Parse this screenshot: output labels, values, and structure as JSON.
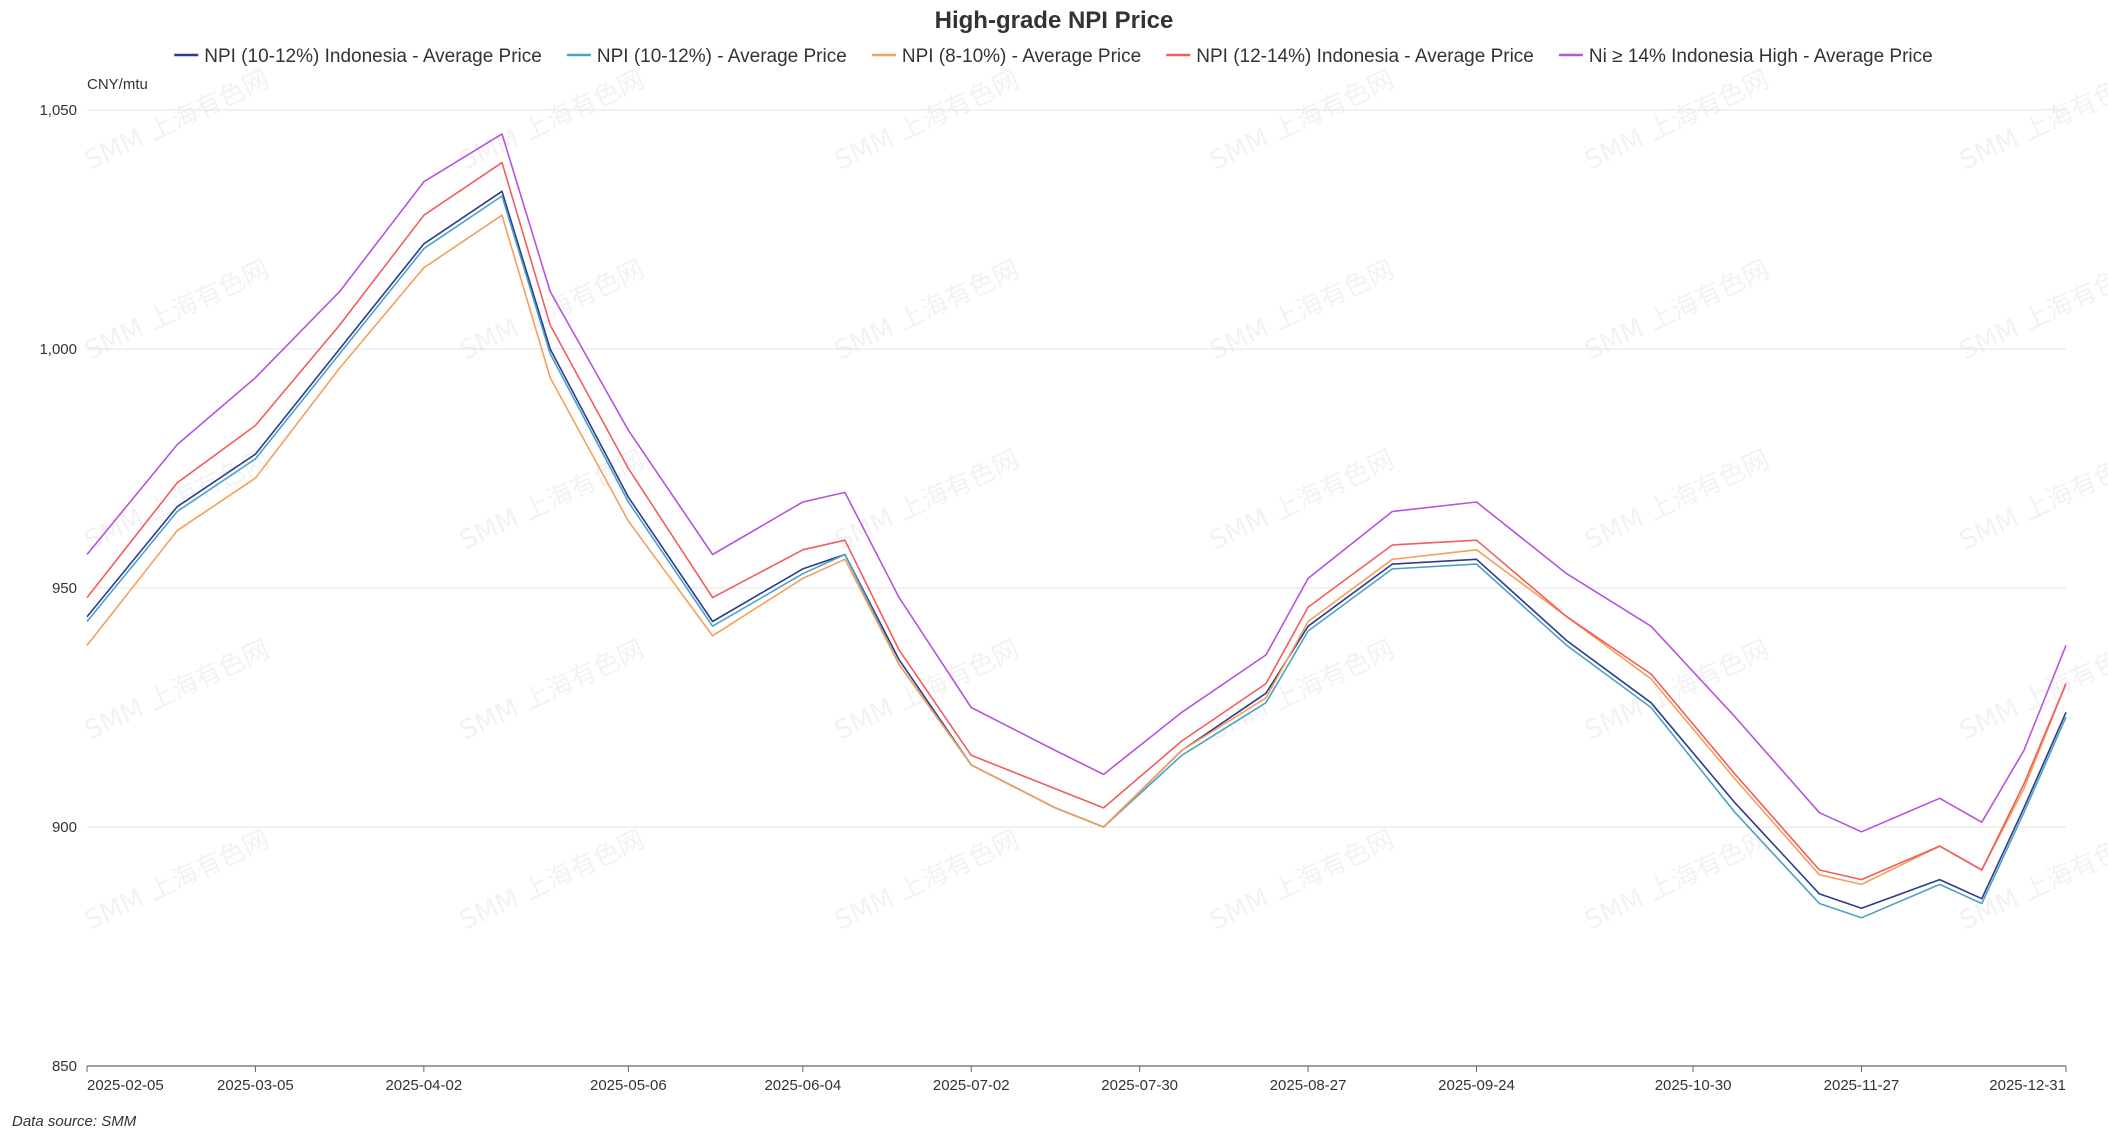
{
  "chart_data": {
    "type": "line",
    "title": "High-grade NPI Price",
    "unit_label": "CNY/mtu",
    "source": "Data source:  SMM",
    "watermark": "SMM 上海有色网",
    "ylim": [
      850,
      1050
    ],
    "yticks": [
      "850",
      "900",
      "950",
      "1,000",
      "1,050"
    ],
    "ytick_values": [
      850,
      900,
      950,
      1000,
      1050
    ],
    "x_first": "2025-02-05",
    "x_last": "2025-12-31",
    "xtick_labels": [
      "2025-02-05",
      "2025-03-05",
      "2025-04-02",
      "2025-05-06",
      "2025-06-04",
      "2025-07-02",
      "2025-07-30",
      "2025-08-27",
      "2025-09-24",
      "2025-10-30",
      "2025-11-27",
      "2025-12-31"
    ],
    "grid": true,
    "legend": "top-center",
    "series": [
      {
        "name": "NPI (10-12%) Indonesia - Average Price",
        "color": "#2f3a8f",
        "points": [
          [
            "2025-02-05",
            944
          ],
          [
            "2025-02-20",
            967
          ],
          [
            "2025-03-05",
            978
          ],
          [
            "2025-03-19",
            1000
          ],
          [
            "2025-04-02",
            1022
          ],
          [
            "2025-04-15",
            1033
          ],
          [
            "2025-04-23",
            1000
          ],
          [
            "2025-05-06",
            969
          ],
          [
            "2025-05-20",
            943
          ],
          [
            "2025-06-04",
            954
          ],
          [
            "2025-06-11",
            957
          ],
          [
            "2025-06-20",
            935
          ],
          [
            "2025-07-02",
            913
          ],
          [
            "2025-07-16",
            904
          ],
          [
            "2025-07-24",
            900
          ],
          [
            "2025-08-06",
            916
          ],
          [
            "2025-08-20",
            928
          ],
          [
            "2025-08-27",
            942
          ],
          [
            "2025-09-10",
            955
          ],
          [
            "2025-09-24",
            956
          ],
          [
            "2025-10-09",
            939
          ],
          [
            "2025-10-23",
            926
          ],
          [
            "2025-11-06",
            905
          ],
          [
            "2025-11-20",
            886
          ],
          [
            "2025-11-27",
            883
          ],
          [
            "2025-12-10",
            889
          ],
          [
            "2025-12-17",
            885
          ],
          [
            "2025-12-24",
            904
          ],
          [
            "2025-12-31",
            924
          ]
        ]
      },
      {
        "name": "NPI (10-12%) - Average Price",
        "color": "#4ba3c3",
        "points": [
          [
            "2025-02-05",
            943
          ],
          [
            "2025-02-20",
            966
          ],
          [
            "2025-03-05",
            977
          ],
          [
            "2025-03-19",
            999
          ],
          [
            "2025-04-02",
            1021
          ],
          [
            "2025-04-15",
            1032
          ],
          [
            "2025-04-23",
            999
          ],
          [
            "2025-05-06",
            968
          ],
          [
            "2025-05-20",
            942
          ],
          [
            "2025-06-04",
            953
          ],
          [
            "2025-06-11",
            957
          ],
          [
            "2025-06-20",
            934
          ],
          [
            "2025-07-02",
            913
          ],
          [
            "2025-07-16",
            904
          ],
          [
            "2025-07-24",
            900
          ],
          [
            "2025-08-06",
            915
          ],
          [
            "2025-08-20",
            926
          ],
          [
            "2025-08-27",
            941
          ],
          [
            "2025-09-10",
            954
          ],
          [
            "2025-09-24",
            955
          ],
          [
            "2025-10-09",
            938
          ],
          [
            "2025-10-23",
            925
          ],
          [
            "2025-11-06",
            903
          ],
          [
            "2025-11-20",
            884
          ],
          [
            "2025-11-27",
            881
          ],
          [
            "2025-12-10",
            888
          ],
          [
            "2025-12-17",
            884
          ],
          [
            "2025-12-24",
            903
          ],
          [
            "2025-12-31",
            923
          ]
        ]
      },
      {
        "name": "NPI (8-10%) - Average Price",
        "color": "#f5a05a",
        "points": [
          [
            "2025-02-05",
            938
          ],
          [
            "2025-02-20",
            962
          ],
          [
            "2025-03-05",
            973
          ],
          [
            "2025-03-19",
            996
          ],
          [
            "2025-04-02",
            1017
          ],
          [
            "2025-04-15",
            1028
          ],
          [
            "2025-04-23",
            994
          ],
          [
            "2025-05-06",
            964
          ],
          [
            "2025-05-20",
            940
          ],
          [
            "2025-06-04",
            952
          ],
          [
            "2025-06-11",
            956
          ],
          [
            "2025-06-20",
            934
          ],
          [
            "2025-07-02",
            913
          ],
          [
            "2025-07-16",
            904
          ],
          [
            "2025-07-24",
            900
          ],
          [
            "2025-08-06",
            916
          ],
          [
            "2025-08-20",
            927
          ],
          [
            "2025-08-27",
            943
          ],
          [
            "2025-09-10",
            956
          ],
          [
            "2025-09-24",
            958
          ],
          [
            "2025-10-09",
            944
          ],
          [
            "2025-10-23",
            931
          ],
          [
            "2025-11-06",
            910
          ],
          [
            "2025-11-20",
            890
          ],
          [
            "2025-11-27",
            888
          ],
          [
            "2025-12-10",
            896
          ],
          [
            "2025-12-17",
            891
          ],
          [
            "2025-12-24",
            908
          ],
          [
            "2025-12-31",
            930
          ]
        ]
      },
      {
        "name": "NPI (12-14%) Indonesia - Average Price",
        "color": "#f25d5d",
        "points": [
          [
            "2025-02-05",
            948
          ],
          [
            "2025-02-20",
            972
          ],
          [
            "2025-03-05",
            984
          ],
          [
            "2025-03-19",
            1005
          ],
          [
            "2025-04-02",
            1028
          ],
          [
            "2025-04-15",
            1039
          ],
          [
            "2025-04-23",
            1005
          ],
          [
            "2025-05-06",
            975
          ],
          [
            "2025-05-20",
            948
          ],
          [
            "2025-06-04",
            958
          ],
          [
            "2025-06-11",
            960
          ],
          [
            "2025-06-20",
            937
          ],
          [
            "2025-07-02",
            915
          ],
          [
            "2025-07-16",
            908
          ],
          [
            "2025-07-24",
            904
          ],
          [
            "2025-08-06",
            918
          ],
          [
            "2025-08-20",
            930
          ],
          [
            "2025-08-27",
            946
          ],
          [
            "2025-09-10",
            959
          ],
          [
            "2025-09-24",
            960
          ],
          [
            "2025-10-09",
            944
          ],
          [
            "2025-10-23",
            932
          ],
          [
            "2025-11-06",
            911
          ],
          [
            "2025-11-20",
            891
          ],
          [
            "2025-11-27",
            889
          ],
          [
            "2025-12-10",
            896
          ],
          [
            "2025-12-17",
            891
          ],
          [
            "2025-12-24",
            909
          ],
          [
            "2025-12-31",
            930
          ]
        ]
      },
      {
        "name": "Ni ≥ 14% Indonesia High - Average Price",
        "color": "#b653e0",
        "points": [
          [
            "2025-02-05",
            957
          ],
          [
            "2025-02-20",
            980
          ],
          [
            "2025-03-05",
            994
          ],
          [
            "2025-03-19",
            1012
          ],
          [
            "2025-04-02",
            1035
          ],
          [
            "2025-04-15",
            1045
          ],
          [
            "2025-04-23",
            1012
          ],
          [
            "2025-05-06",
            983
          ],
          [
            "2025-05-20",
            957
          ],
          [
            "2025-06-04",
            968
          ],
          [
            "2025-06-11",
            970
          ],
          [
            "2025-06-20",
            948
          ],
          [
            "2025-07-02",
            925
          ],
          [
            "2025-07-16",
            916
          ],
          [
            "2025-07-24",
            911
          ],
          [
            "2025-08-06",
            924
          ],
          [
            "2025-08-20",
            936
          ],
          [
            "2025-08-27",
            952
          ],
          [
            "2025-09-10",
            966
          ],
          [
            "2025-09-24",
            968
          ],
          [
            "2025-10-09",
            953
          ],
          [
            "2025-10-23",
            942
          ],
          [
            "2025-11-06",
            923
          ],
          [
            "2025-11-20",
            903
          ],
          [
            "2025-11-27",
            899
          ],
          [
            "2025-12-10",
            906
          ],
          [
            "2025-12-17",
            901
          ],
          [
            "2025-12-24",
            916
          ],
          [
            "2025-12-31",
            938
          ]
        ]
      }
    ]
  }
}
